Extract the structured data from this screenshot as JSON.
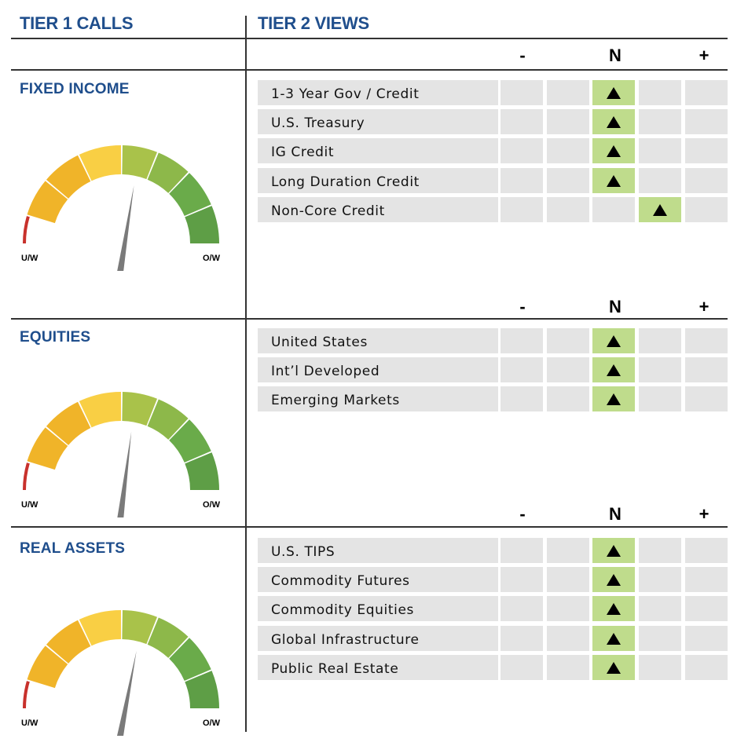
{
  "header": {
    "tier1": "TIER 1 CALLS",
    "tier2": "TIER 2 VIEWS"
  },
  "columns": [
    "-",
    "N",
    "+"
  ],
  "gauge_labels": {
    "left": "U/W",
    "right": "O/W"
  },
  "colors": {
    "title_blue": "#1f4e8c",
    "neutral_highlight": "#bfdc8c",
    "cell_grey": "#e4e4e4",
    "gauge": [
      "#c8312c",
      "#f0b429",
      "#f9cf44",
      "#a9c24a",
      "#8db84a",
      "#6aab4a",
      "#5e9e46"
    ]
  },
  "chart_data": [
    {
      "type": "table",
      "title": "FIXED INCOME",
      "gauge_value": 0.55,
      "columns": [
        "-",
        "N",
        "+"
      ],
      "rows": [
        {
          "label": "1-3 Year Gov / Credit",
          "position": 2
        },
        {
          "label": "U.S. Treasury",
          "position": 2
        },
        {
          "label": "IG Credit",
          "position": 2
        },
        {
          "label": "Long Duration Credit",
          "position": 2
        },
        {
          "label": "Non-Core Credit",
          "position": 3
        }
      ]
    },
    {
      "type": "table",
      "title": "EQUITIES",
      "gauge_value": 0.54,
      "columns": [
        "-",
        "N",
        "+"
      ],
      "rows": [
        {
          "label": "United States",
          "position": 2
        },
        {
          "label": "Int’l Developed",
          "position": 2
        },
        {
          "label": "Emerging Markets",
          "position": 2
        }
      ]
    },
    {
      "type": "table",
      "title": "REAL ASSETS",
      "gauge_value": 0.56,
      "columns": [
        "-",
        "N",
        "+"
      ],
      "rows": [
        {
          "label": "U.S. TIPS",
          "position": 2
        },
        {
          "label": "Commodity Futures",
          "position": 2
        },
        {
          "label": "Commodity Equities",
          "position": 2
        },
        {
          "label": "Global Infrastructure",
          "position": 2
        },
        {
          "label": "Public Real Estate",
          "position": 2
        }
      ]
    }
  ]
}
